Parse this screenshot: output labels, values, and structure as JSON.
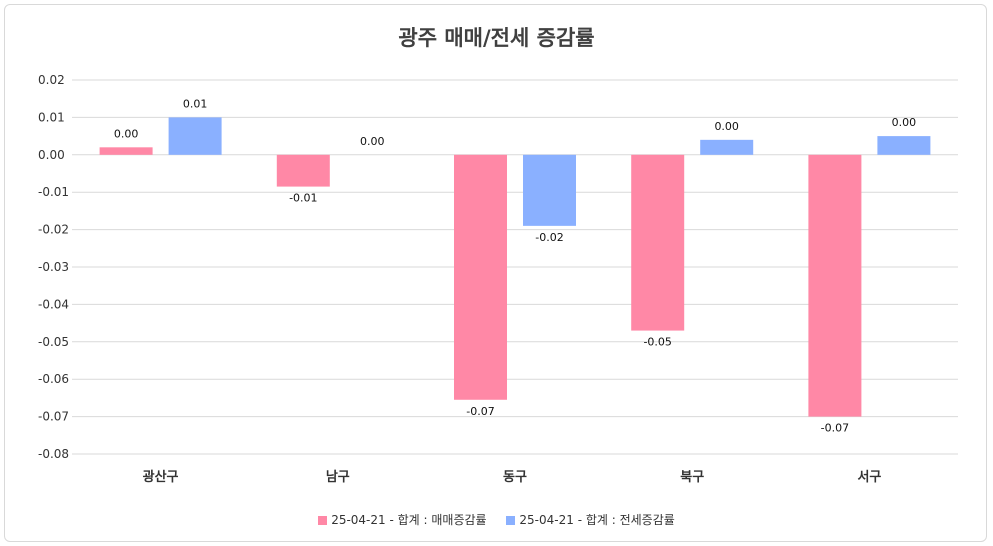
{
  "colors": {
    "sale": "#ff88a6",
    "rent": "#8ab0ff",
    "grid": "#d9d9d9"
  },
  "chart_data": {
    "type": "bar",
    "title": "광주 매매/전세 증감률",
    "categories": [
      "광산구",
      "남구",
      "동구",
      "북구",
      "서구"
    ],
    "ylim": [
      -0.08,
      0.02
    ],
    "yticks": [
      "0.02",
      "0.01",
      "0.00",
      "-0.01",
      "-0.02",
      "-0.03",
      "-0.04",
      "-0.05",
      "-0.06",
      "-0.07",
      "-0.08"
    ],
    "grid": true,
    "legend_position": "bottom",
    "series": [
      {
        "name": "25-04-21 - 합계 : 매매증감률",
        "values": [
          0.002,
          -0.0085,
          -0.0655,
          -0.047,
          -0.07
        ],
        "labels": [
          "0.00",
          "-0.01",
          "-0.07",
          "-0.05",
          "-0.07"
        ]
      },
      {
        "name": "25-04-21 - 합계 : 전세증감률",
        "values": [
          0.01,
          0.0,
          -0.019,
          0.004,
          0.005
        ],
        "labels": [
          "0.01",
          "0.00",
          "-0.02",
          "0.00",
          "0.00"
        ]
      }
    ]
  }
}
